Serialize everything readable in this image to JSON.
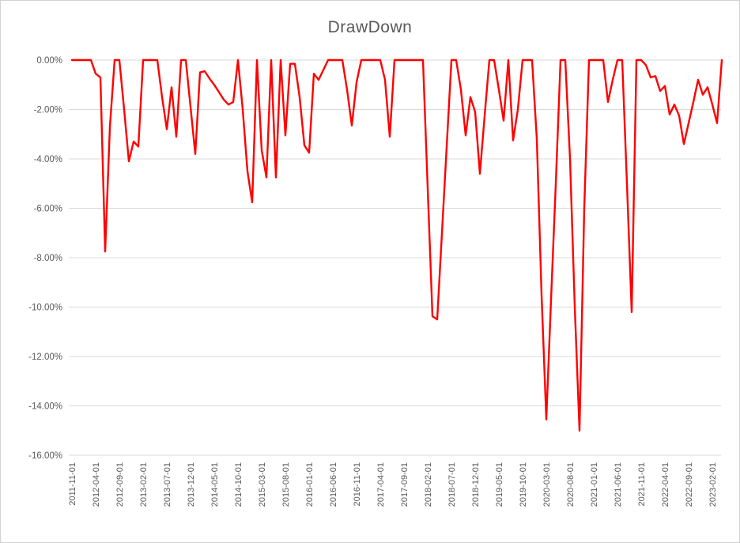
{
  "title": "DrawDown",
  "chart_data": {
    "type": "line",
    "title": "DrawDown",
    "xlabel": "",
    "ylabel": "",
    "ylim": [
      -16,
      0
    ],
    "ytick_step": 2,
    "grid": true,
    "legend_position": "none",
    "y_tick_labels": [
      "0.00%",
      "-2.00%",
      "-4.00%",
      "-6.00%",
      "-8.00%",
      "-10.00%",
      "-12.00%",
      "-14.00%",
      "-16.00%"
    ],
    "x_tick_labels": [
      "2011-11-01",
      "2012-04-01",
      "2012-09-01",
      "2013-02-01",
      "2013-07-01",
      "2013-12-01",
      "2014-05-01",
      "2014-10-01",
      "2015-03-01",
      "2015-08-01",
      "2016-01-01",
      "2016-06-01",
      "2016-11-01",
      "2017-04-01",
      "2017-09-01",
      "2018-02-01",
      "2018-07-01",
      "2018-12-01",
      "2019-05-01",
      "2019-10-01",
      "2020-03-01",
      "2020-08-01",
      "2021-01-01",
      "2021-06-01",
      "2021-11-01",
      "2022-04-01",
      "2022-09-01",
      "2023-02-01"
    ],
    "points_per_label_interval": 5,
    "series": [
      {
        "name": "DrawDown",
        "color": "#FF0000",
        "unit": "percent",
        "values": [
          0,
          0,
          0,
          0,
          0,
          -0.55,
          -0.7,
          -7.75,
          -2.7,
          0,
          0,
          -2.0,
          -4.1,
          -3.3,
          -3.5,
          0,
          0,
          0,
          0,
          -1.5,
          -2.8,
          -1.1,
          -3.1,
          0,
          0,
          -1.9,
          -3.8,
          -0.5,
          -0.45,
          -0.75,
          -1.0,
          -1.3,
          -1.6,
          -1.8,
          -1.7,
          0,
          -2.0,
          -4.5,
          -5.76,
          0,
          -3.65,
          -4.75,
          0,
          -4.75,
          0,
          -3.05,
          -0.15,
          -0.15,
          -1.5,
          -3.45,
          -3.75,
          -0.55,
          -0.8,
          -0.4,
          0,
          0,
          0,
          0,
          -1.2,
          -2.65,
          -0.9,
          0,
          0,
          0,
          0,
          0,
          -0.8,
          -3.1,
          0,
          0,
          0,
          0,
          0,
          0,
          0,
          -5.2,
          -10.37,
          -10.5,
          -7.0,
          -3.5,
          0,
          0,
          -1.2,
          -3.05,
          -1.5,
          -2.1,
          -4.6,
          -2.25,
          0,
          0,
          -1.2,
          -2.45,
          0,
          -3.25,
          -2.0,
          0,
          0,
          0,
          -3.2,
          -9.5,
          -14.55,
          -9.7,
          -5.0,
          0,
          0,
          -4.0,
          -10.0,
          -15.0,
          -6.0,
          0,
          0,
          0,
          0,
          -1.7,
          -0.8,
          0,
          0,
          -5.0,
          -10.2,
          0,
          0,
          -0.2,
          -0.7,
          -0.65,
          -1.25,
          -1.05,
          -2.2,
          -1.8,
          -2.25,
          -3.4,
          -2.55,
          -1.7,
          -0.8,
          -1.4,
          -1.1,
          -1.8,
          -2.55,
          0
        ]
      }
    ],
    "colors": {
      "line": "#FF0000",
      "grid": "#D9D9D9",
      "text": "#595959",
      "background": "#FFFFFF",
      "border": "#D2D2D2"
    }
  }
}
